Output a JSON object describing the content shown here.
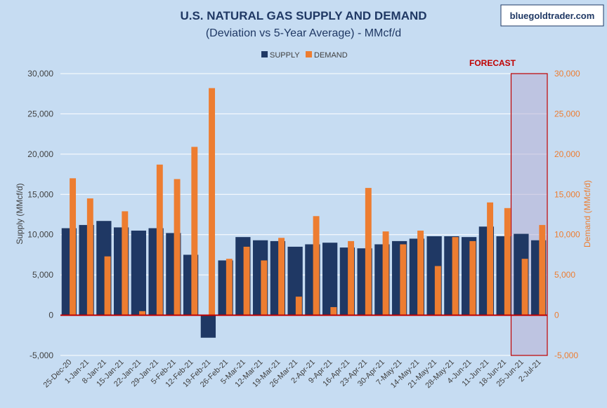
{
  "title": "U.S. NATURAL GAS SUPPLY AND DEMAND",
  "subtitle": "(Deviation vs 5-Year Average) - MMcf/d",
  "watermark": "bluegoldtrader.com",
  "forecast_label": "FORECAST",
  "colors": {
    "background": "#c6dcf2",
    "supply": "#1f3864",
    "demand": "#ed7d31",
    "forecast_border": "#c00000",
    "forecast_fill": "#b8b0d4",
    "zero_line": "#c00000",
    "gridline": "#ffffff",
    "title": "#1f3864",
    "axis_text": "#404040"
  },
  "chart_data": {
    "type": "bar",
    "title": "U.S. NATURAL GAS SUPPLY AND DEMAND",
    "subtitle": "(Deviation vs 5-Year Average) - MMcf/d",
    "legend_position": "top-center",
    "grid": true,
    "ylabel": "Supply (MMcf/d)",
    "y2label": "Demand (MMcf/d)",
    "ylim": [
      -5000,
      30000
    ],
    "y2lim": [
      -5000,
      30000
    ],
    "ytick_labels": [
      "-5,000",
      "0",
      "5,000",
      "10,000",
      "15,000",
      "20,000",
      "25,000",
      "30,000"
    ],
    "ytick_values": [
      -5000,
      0,
      5000,
      10000,
      15000,
      20000,
      25000,
      30000
    ],
    "categories": [
      "25-Dec-20",
      "1-Jan-21",
      "8-Jan-21",
      "15-Jan-21",
      "22-Jan-21",
      "29-Jan-21",
      "5-Feb-21",
      "12-Feb-21",
      "19-Feb-21",
      "26-Feb-21",
      "5-Mar-21",
      "12-Mar-21",
      "19-Mar-21",
      "26-Mar-21",
      "2-Apr-21",
      "9-Apr-21",
      "16-Apr-21",
      "23-Apr-21",
      "30-Apr-21",
      "7-May-21",
      "14-May-21",
      "21-May-21",
      "28-May-21",
      "4-Jun-21",
      "11-Jun-21",
      "18-Jun-21",
      "25-Jun-21",
      "2-Jul-21"
    ],
    "series": [
      {
        "name": "SUPPLY",
        "values": [
          10800,
          11200,
          11700,
          10900,
          10500,
          10800,
          10200,
          7500,
          -2800,
          6800,
          9700,
          9300,
          9200,
          8500,
          8800,
          9000,
          8400,
          8300,
          8800,
          9200,
          9500,
          9800,
          9800,
          9700,
          11000,
          9800,
          10100,
          9300
        ]
      },
      {
        "name": "DEMAND",
        "values": [
          17000,
          14500,
          7300,
          12900,
          500,
          18700,
          16900,
          20900,
          28200,
          7000,
          8500,
          6800,
          9600,
          2300,
          12300,
          1000,
          9200,
          15800,
          10400,
          8800,
          10500,
          6100,
          9700,
          9200,
          14000,
          13300,
          7000,
          11200
        ]
      }
    ],
    "forecast_categories": [
      "25-Jun-21",
      "2-Jul-21"
    ]
  }
}
